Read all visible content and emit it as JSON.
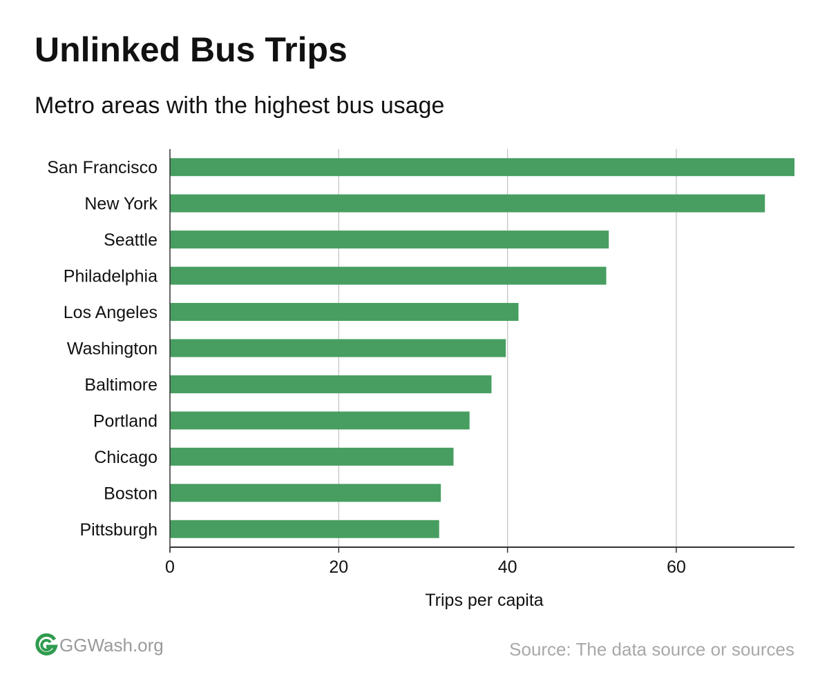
{
  "chart_data": {
    "type": "bar",
    "orientation": "horizontal",
    "title": "Unlinked Bus Trips",
    "subtitle": "Metro areas with the highest bus usage",
    "xlabel": "Trips per capita",
    "ylabel": "",
    "categories": [
      "San Francisco",
      "New York",
      "Seattle",
      "Philadelphia",
      "Los Angeles",
      "Washington",
      "Baltimore",
      "Portland",
      "Chicago",
      "Boston",
      "Pittsburgh"
    ],
    "values": [
      74,
      70.5,
      52,
      51.7,
      41.3,
      39.8,
      38.1,
      35.5,
      33.6,
      32.1,
      31.9
    ],
    "xlim": [
      0,
      74
    ],
    "xticks": [
      0,
      20,
      40,
      60
    ],
    "grid": "vertical",
    "bar_color": "#479e60",
    "legend": "none"
  },
  "footer": {
    "brand": "GGWash.org",
    "logo_icon": "ggwash-logo-icon",
    "logo_color": "#2e9b4e",
    "source": "Source: The data source or sources"
  }
}
